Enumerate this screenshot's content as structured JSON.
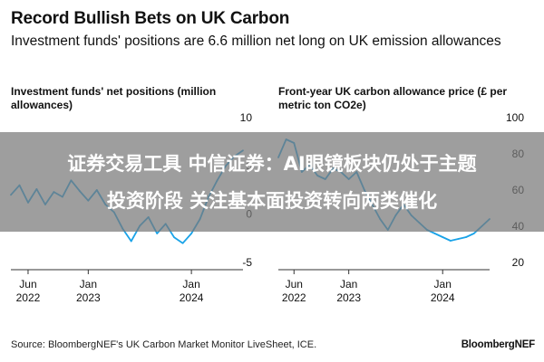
{
  "title": "Record Bullish Bets on UK Carbon",
  "subtitle": "Investment funds' positions are 6.6 million net long on UK emission allowances",
  "source": "Source: BloombergNEF's UK Carbon Market Monitor LiveSheet, ICE.",
  "brand": "BloombergNEF",
  "overlay": {
    "line1": "证券交易工具 中信证券：AI眼镜板块仍处于主题",
    "line2": "投资阶段 关注基本面投资转向两类催化"
  },
  "colors": {
    "series": "#1aa3e8",
    "axis": "#333333",
    "grid": "#cccccc",
    "text": "#111111"
  },
  "chart_data": [
    {
      "type": "line",
      "title": "Investment funds' net positions (million allowances)",
      "xlabel": "",
      "ylabel": "",
      "ylim": [
        -5,
        10
      ],
      "yticks": [
        10,
        "5",
        "0",
        -5
      ],
      "xticks": [
        {
          "label": [
            "Jun",
            "2022"
          ],
          "x": "2022-06"
        },
        {
          "label": [
            "Jan",
            "2023"
          ],
          "x": "2023-01"
        },
        {
          "label": [
            "Jan",
            "2024"
          ],
          "x": "2024-01"
        }
      ],
      "xlim": [
        "2022-04",
        "2024-07"
      ],
      "grid": false,
      "axis_position": "right",
      "series": [
        {
          "values": [
            [
              "2022-04",
              2.0
            ],
            [
              "2022-05",
              3.0
            ],
            [
              "2022-06",
              1.2
            ],
            [
              "2022-07",
              2.6
            ],
            [
              "2022-08",
              1.0
            ],
            [
              "2022-09",
              2.3
            ],
            [
              "2022-10",
              1.8
            ],
            [
              "2022-11",
              3.5
            ],
            [
              "2022-12",
              2.4
            ],
            [
              "2023-01",
              1.4
            ],
            [
              "2023-02",
              2.5
            ],
            [
              "2023-03",
              1.0
            ],
            [
              "2023-04",
              0.2
            ],
            [
              "2023-05",
              -1.5
            ],
            [
              "2023-06",
              -2.8
            ],
            [
              "2023-07",
              -1.2
            ],
            [
              "2023-08",
              -0.3
            ],
            [
              "2023-09",
              -2.0
            ],
            [
              "2023-10",
              -1.0
            ],
            [
              "2023-11",
              -2.4
            ],
            [
              "2023-12",
              -3.0
            ],
            [
              "2024-01",
              -2.0
            ],
            [
              "2024-02",
              -0.5
            ],
            [
              "2024-03",
              1.8
            ],
            [
              "2024-04",
              3.5
            ],
            [
              "2024-05",
              5.0
            ],
            [
              "2024-06",
              6.0
            ],
            [
              "2024-07",
              6.6
            ]
          ]
        }
      ]
    },
    {
      "type": "line",
      "title": "Front-year UK carbon allowance price (£ per metric ton CO2e)",
      "xlabel": "",
      "ylabel": "",
      "ylim": [
        20,
        100
      ],
      "yticks": [
        100,
        "80",
        "60",
        40,
        20
      ],
      "xticks": [
        {
          "label": [
            "Jun",
            "2022"
          ],
          "x": "2022-06"
        },
        {
          "label": [
            "Jan",
            "2023"
          ],
          "x": "2023-01"
        },
        {
          "label": [
            "Jan",
            "2024"
          ],
          "x": "2024-01"
        }
      ],
      "xlim": [
        "2022-04",
        "2024-07"
      ],
      "grid": false,
      "axis_position": "right",
      "series": [
        {
          "values": [
            [
              "2022-04",
              78
            ],
            [
              "2022-05",
              88
            ],
            [
              "2022-06",
              86
            ],
            [
              "2022-07",
              70
            ],
            [
              "2022-08",
              74
            ],
            [
              "2022-09",
              68
            ],
            [
              "2022-10",
              66
            ],
            [
              "2022-11",
              72
            ],
            [
              "2022-12",
              70
            ],
            [
              "2023-01",
              66
            ],
            [
              "2023-02",
              70
            ],
            [
              "2023-03",
              60
            ],
            [
              "2023-04",
              52
            ],
            [
              "2023-05",
              44
            ],
            [
              "2023-06",
              38
            ],
            [
              "2023-07",
              46
            ],
            [
              "2023-08",
              52
            ],
            [
              "2023-09",
              46
            ],
            [
              "2023-10",
              42
            ],
            [
              "2023-11",
              38
            ],
            [
              "2023-12",
              36
            ],
            [
              "2024-01",
              34
            ],
            [
              "2024-02",
              32
            ],
            [
              "2024-03",
              33
            ],
            [
              "2024-04",
              34
            ],
            [
              "2024-05",
              36
            ],
            [
              "2024-06",
              40
            ],
            [
              "2024-07",
              44
            ]
          ]
        }
      ]
    }
  ]
}
